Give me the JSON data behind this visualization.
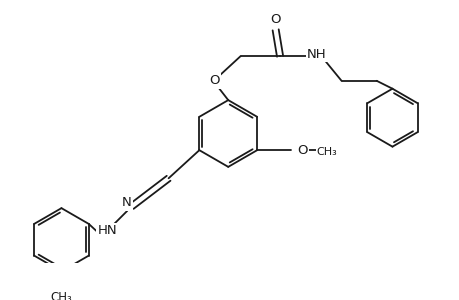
{
  "bg_color": "#ffffff",
  "line_color": "#1a1a1a",
  "line_width": 1.3,
  "font_size": 9.5,
  "figsize": [
    4.6,
    3.0
  ],
  "dpi": 100,
  "xlim": [
    0,
    460
  ],
  "ylim": [
    0,
    300
  ]
}
